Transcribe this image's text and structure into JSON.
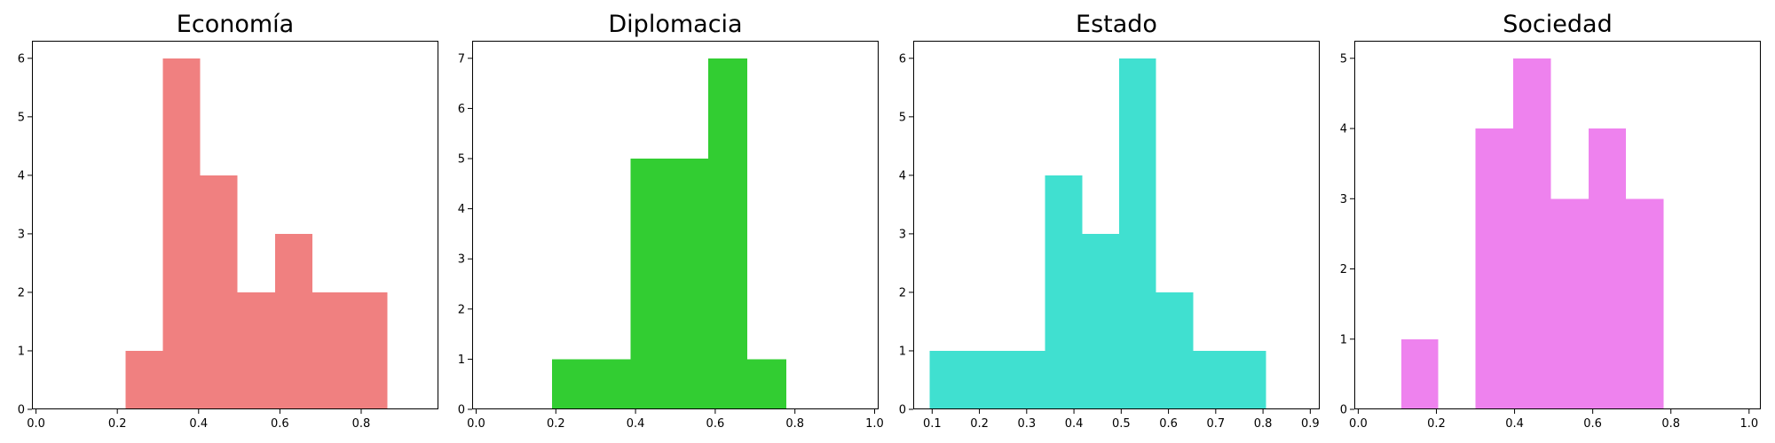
{
  "chart_data": [
    {
      "type": "bar",
      "title": "Economía",
      "color": "#f08080",
      "xlim": [
        -0.01,
        0.99
      ],
      "ylim": [
        0,
        6.3
      ],
      "xticks": [
        0.0,
        0.2,
        0.4,
        0.6,
        0.8
      ],
      "xtick_labels": [
        "0.0",
        "0.2",
        "0.4",
        "0.6",
        "0.8"
      ],
      "yticks": [
        0,
        1,
        2,
        3,
        4,
        5,
        6
      ],
      "ytick_labels": [
        "0",
        "1",
        "2",
        "3",
        "4",
        "5",
        "6"
      ],
      "bins": [
        {
          "x0": 0.22,
          "x1": 0.312,
          "count": 1
        },
        {
          "x0": 0.312,
          "x1": 0.404,
          "count": 6
        },
        {
          "x0": 0.404,
          "x1": 0.496,
          "count": 4
        },
        {
          "x0": 0.496,
          "x1": 0.588,
          "count": 2
        },
        {
          "x0": 0.588,
          "x1": 0.68,
          "count": 3
        },
        {
          "x0": 0.68,
          "x1": 0.772,
          "count": 2
        },
        {
          "x0": 0.772,
          "x1": 0.864,
          "count": 2
        }
      ]
    },
    {
      "type": "bar",
      "title": "Diplomacia",
      "color": "#32cd32",
      "xlim": [
        -0.01,
        1.01
      ],
      "ylim": [
        0,
        7.35
      ],
      "xticks": [
        0.0,
        0.2,
        0.4,
        0.6,
        0.8,
        1.0
      ],
      "xtick_labels": [
        "0.0",
        "0.2",
        "0.4",
        "0.6",
        "0.8",
        "1.0"
      ],
      "yticks": [
        0,
        1,
        2,
        3,
        4,
        5,
        6,
        7
      ],
      "ytick_labels": [
        "0",
        "1",
        "2",
        "3",
        "4",
        "5",
        "6",
        "7"
      ],
      "bins": [
        {
          "x0": 0.19,
          "x1": 0.387,
          "count": 1
        },
        {
          "x0": 0.387,
          "x1": 0.582,
          "count": 5
        },
        {
          "x0": 0.582,
          "x1": 0.68,
          "count": 7
        },
        {
          "x0": 0.68,
          "x1": 0.778,
          "count": 1
        }
      ]
    },
    {
      "type": "bar",
      "title": "Estado",
      "color": "#40e0d0",
      "xlim": [
        0.06,
        0.92
      ],
      "ylim": [
        0,
        6.3
      ],
      "xticks": [
        0.1,
        0.2,
        0.3,
        0.4,
        0.5,
        0.6,
        0.7,
        0.8,
        0.9
      ],
      "xtick_labels": [
        "0.1",
        "0.2",
        "0.3",
        "0.4",
        "0.5",
        "0.6",
        "0.7",
        "0.8",
        "0.9"
      ],
      "yticks": [
        0,
        1,
        2,
        3,
        4,
        5,
        6
      ],
      "ytick_labels": [
        "0",
        "1",
        "2",
        "3",
        "4",
        "5",
        "6"
      ],
      "bins": [
        {
          "x0": 0.095,
          "x1": 0.339,
          "count": 1
        },
        {
          "x0": 0.339,
          "x1": 0.418,
          "count": 4
        },
        {
          "x0": 0.418,
          "x1": 0.496,
          "count": 3
        },
        {
          "x0": 0.496,
          "x1": 0.574,
          "count": 6
        },
        {
          "x0": 0.574,
          "x1": 0.652,
          "count": 2
        },
        {
          "x0": 0.652,
          "x1": 0.806,
          "count": 1
        }
      ]
    },
    {
      "type": "bar",
      "title": "Sociedad",
      "color": "#ee82ee",
      "xlim": [
        -0.01,
        1.03
      ],
      "ylim": [
        0,
        5.25
      ],
      "xticks": [
        0.0,
        0.2,
        0.4,
        0.6,
        0.8,
        1.0
      ],
      "xtick_labels": [
        "0.0",
        "0.2",
        "0.4",
        "0.6",
        "0.8",
        "1.0"
      ],
      "yticks": [
        0,
        1,
        2,
        3,
        4,
        5
      ],
      "ytick_labels": [
        "0",
        "1",
        "2",
        "3",
        "4",
        "5"
      ],
      "bins": [
        {
          "x0": 0.11,
          "x1": 0.205,
          "count": 1
        },
        {
          "x0": 0.3,
          "x1": 0.397,
          "count": 4
        },
        {
          "x0": 0.397,
          "x1": 0.493,
          "count": 5
        },
        {
          "x0": 0.493,
          "x1": 0.589,
          "count": 3
        },
        {
          "x0": 0.589,
          "x1": 0.685,
          "count": 4
        },
        {
          "x0": 0.685,
          "x1": 0.781,
          "count": 3
        }
      ]
    }
  ]
}
